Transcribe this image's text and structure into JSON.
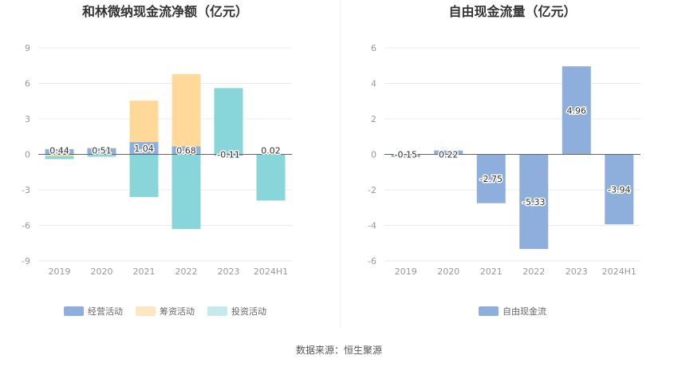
{
  "footer": {
    "source": "数据来源：恒生聚源"
  },
  "colors": {
    "operating": "#8eaedb",
    "financing": "#ffd89a",
    "investing": "#88d6d9",
    "fcf": "#8eaedb"
  },
  "chart_data": [
    {
      "type": "bar",
      "stacked": true,
      "title": "和林微纳现金流净额（亿元）",
      "categories": [
        "2019",
        "2020",
        "2021",
        "2022",
        "2023",
        "2024H1"
      ],
      "ylim": [
        -9,
        9
      ],
      "yticks": [
        9,
        6,
        3,
        0,
        -3,
        -6,
        -9
      ],
      "grid": true,
      "legend_position": "bottom",
      "series": [
        {
          "name": "经营活动",
          "color": "#8eaedb",
          "values": [
            0.44,
            0.51,
            1.04,
            0.68,
            -0.11,
            0.02
          ]
        },
        {
          "name": "筹资活动",
          "color": "#ffd89a",
          "values": [
            -0.15,
            0.05,
            3.5,
            6.1,
            0.0,
            0.0
          ]
        },
        {
          "name": "投资活动",
          "color": "#88d6d9",
          "values": [
            -0.25,
            -0.2,
            -3.6,
            -6.3,
            5.6,
            -3.9
          ]
        }
      ],
      "data_labels": [
        "0.44",
        "0.51",
        "1.04",
        "0.68",
        "-0.11",
        "0.02"
      ]
    },
    {
      "type": "bar",
      "title": "自由现金流量（亿元）",
      "categories": [
        "2019",
        "2020",
        "2021",
        "2022",
        "2023",
        "2024H1"
      ],
      "ylim": [
        -6,
        6
      ],
      "yticks": [
        6,
        4,
        2,
        0,
        -2,
        -4,
        -6
      ],
      "grid": true,
      "legend_position": "bottom",
      "series": [
        {
          "name": "自由现金流",
          "color": "#8eaedb",
          "values": [
            -0.15,
            0.22,
            -2.75,
            -5.33,
            4.96,
            -3.94
          ]
        }
      ],
      "data_labels": [
        "-0.15",
        "0.22",
        "-2.75",
        "-5.33",
        "4.96",
        "-3.94"
      ]
    }
  ]
}
